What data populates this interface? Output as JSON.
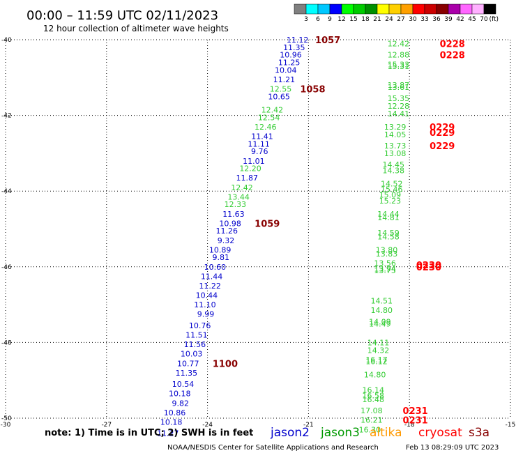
{
  "chart_data": {
    "type": "scatter",
    "title": "00:00 – 11:59 UTC 02/11/2023",
    "subtitle": "12 hour collection of altimeter wave heights",
    "xlim": [
      -30,
      -15
    ],
    "ylim": [
      -50,
      -40
    ],
    "x_ticks": [
      -30,
      -27,
      -24,
      -21,
      -18,
      -15
    ],
    "y_ticks": [
      -40,
      -42,
      -44,
      -46,
      -48,
      -50
    ],
    "x_tick_labels": [
      "-30",
      "-27",
      "-24",
      "-21",
      "-18",
      "-15"
    ],
    "y_tick_labels": [
      "-40",
      "-42",
      "-44",
      "-46",
      "-48",
      "-50"
    ],
    "grid": true,
    "legend": {
      "values": [
        "3",
        "6",
        "9",
        "12",
        "15",
        "18",
        "21",
        "24",
        "27",
        "30",
        "33",
        "36",
        "39",
        "42",
        "45",
        "70"
      ],
      "unit": "(ft)",
      "colors": [
        "#808080",
        "#00ffff",
        "#00c8ff",
        "#0000ff",
        "#00ff00",
        "#00cc00",
        "#009000",
        "#ffff00",
        "#ffd000",
        "#ffa000",
        "#ff0000",
        "#cc0000",
        "#880000",
        "#aa00aa",
        "#ff66ff",
        "#ffb0ff",
        "#000000"
      ]
    },
    "series": [
      {
        "name": "jason2",
        "color": "#0000cc",
        "points": [
          {
            "x": -21.0,
            "y": -40.0,
            "label": "11.12"
          },
          {
            "x": -21.1,
            "y": -40.2,
            "label": "11.35"
          },
          {
            "x": -21.2,
            "y": -40.4,
            "label": "10.96"
          },
          {
            "x": -21.25,
            "y": -40.6,
            "label": "11.25"
          },
          {
            "x": -21.35,
            "y": -40.8,
            "label": "10.04"
          },
          {
            "x": -21.4,
            "y": -41.05,
            "label": "11.21"
          },
          {
            "x": -21.55,
            "y": -41.5,
            "label": "10.65"
          },
          {
            "x": -22.05,
            "y": -42.55,
            "label": "11.41"
          },
          {
            "x": -22.15,
            "y": -42.75,
            "label": "11.11"
          },
          {
            "x": -22.2,
            "y": -42.95,
            "label": "9.76"
          },
          {
            "x": -22.3,
            "y": -43.2,
            "label": "11.01"
          },
          {
            "x": -22.5,
            "y": -43.65,
            "label": "11.87"
          },
          {
            "x": -22.9,
            "y": -44.6,
            "label": "11.63"
          },
          {
            "x": -23.0,
            "y": -44.85,
            "label": "10.98"
          },
          {
            "x": -23.1,
            "y": -45.05,
            "label": "11.26"
          },
          {
            "x": -23.2,
            "y": -45.3,
            "label": "9.32"
          },
          {
            "x": -23.3,
            "y": -45.55,
            "label": "10.89"
          },
          {
            "x": -23.35,
            "y": -45.75,
            "label": "9.81"
          },
          {
            "x": -23.45,
            "y": -46.0,
            "label": "10.60"
          },
          {
            "x": -23.55,
            "y": -46.25,
            "label": "11.44"
          },
          {
            "x": -23.6,
            "y": -46.5,
            "label": "11.22"
          },
          {
            "x": -23.7,
            "y": -46.75,
            "label": "10.44"
          },
          {
            "x": -23.75,
            "y": -47.0,
            "label": "11.10"
          },
          {
            "x": -23.8,
            "y": -47.25,
            "label": "9.99"
          },
          {
            "x": -23.9,
            "y": -47.55,
            "label": "10.76"
          },
          {
            "x": -24.0,
            "y": -47.8,
            "label": "11.51"
          },
          {
            "x": -24.05,
            "y": -48.05,
            "label": "11.56"
          },
          {
            "x": -24.15,
            "y": -48.3,
            "label": "10.03"
          },
          {
            "x": -24.25,
            "y": -48.55,
            "label": "10.77"
          },
          {
            "x": -24.3,
            "y": -48.8,
            "label": "11.35"
          },
          {
            "x": -24.4,
            "y": -49.1,
            "label": "10.54"
          },
          {
            "x": -24.5,
            "y": -49.35,
            "label": "10.18"
          },
          {
            "x": -24.55,
            "y": -49.6,
            "label": "9.82"
          },
          {
            "x": -24.65,
            "y": -49.85,
            "label": "10.86"
          },
          {
            "x": -24.75,
            "y": -50.1,
            "label": "10.18"
          },
          {
            "x": -24.85,
            "y": -50.4,
            "label": "11.27"
          }
        ]
      },
      {
        "name": "jason3",
        "color": "#33cc33",
        "points": [
          {
            "x": -21.5,
            "y": -41.3,
            "label": "12.55"
          },
          {
            "x": -21.75,
            "y": -41.85,
            "label": "12.42"
          },
          {
            "x": -21.85,
            "y": -42.05,
            "label": "12.54"
          },
          {
            "x": -21.95,
            "y": -42.3,
            "label": "12.46"
          },
          {
            "x": -22.4,
            "y": -43.4,
            "label": "12.20"
          },
          {
            "x": -22.65,
            "y": -43.9,
            "label": "12.42"
          },
          {
            "x": -22.75,
            "y": -44.15,
            "label": "13.44"
          },
          {
            "x": -22.85,
            "y": -44.35,
            "label": "12.33"
          },
          {
            "x": -18.0,
            "y": -40.1,
            "label": "12.42"
          },
          {
            "x": -18.0,
            "y": -40.4,
            "label": "12.88"
          },
          {
            "x": -18.0,
            "y": -40.65,
            "label": "15.33"
          },
          {
            "x": -18.0,
            "y": -40.7,
            "label": "15.31"
          },
          {
            "x": -18.0,
            "y": -41.2,
            "label": "13.87"
          },
          {
            "x": -18.0,
            "y": -41.25,
            "label": "13.61"
          },
          {
            "x": -18.0,
            "y": -41.55,
            "label": "15.35"
          },
          {
            "x": -18.0,
            "y": -41.75,
            "label": "12.28"
          },
          {
            "x": -18.0,
            "y": -41.95,
            "label": "14.41"
          },
          {
            "x": -18.1,
            "y": -42.3,
            "label": "13.29"
          },
          {
            "x": -18.1,
            "y": -42.5,
            "label": "14.05"
          },
          {
            "x": -18.1,
            "y": -42.8,
            "label": "13.73"
          },
          {
            "x": -18.1,
            "y": -43.0,
            "label": "13.08"
          },
          {
            "x": -18.15,
            "y": -43.3,
            "label": "14.45"
          },
          {
            "x": -18.15,
            "y": -43.45,
            "label": "14.38"
          },
          {
            "x": -18.2,
            "y": -43.8,
            "label": "14.52"
          },
          {
            "x": -18.2,
            "y": -43.95,
            "label": "15.46"
          },
          {
            "x": -18.25,
            "y": -44.1,
            "label": "15.09"
          },
          {
            "x": -18.25,
            "y": -44.25,
            "label": "15.23"
          },
          {
            "x": -18.3,
            "y": -44.6,
            "label": "14.44"
          },
          {
            "x": -18.3,
            "y": -44.7,
            "label": "14.81"
          },
          {
            "x": -18.3,
            "y": -45.1,
            "label": "14.59"
          },
          {
            "x": -18.3,
            "y": -45.2,
            "label": "14.58"
          },
          {
            "x": -18.35,
            "y": -45.55,
            "label": "13.80"
          },
          {
            "x": -18.35,
            "y": -45.65,
            "label": "13.83"
          },
          {
            "x": -18.4,
            "y": -45.9,
            "label": "13.56"
          },
          {
            "x": -18.4,
            "y": -46.05,
            "label": "13.94"
          },
          {
            "x": -18.4,
            "y": -46.1,
            "label": "13.75"
          },
          {
            "x": -18.5,
            "y": -46.9,
            "label": "14.51"
          },
          {
            "x": -18.5,
            "y": -47.15,
            "label": "14.80"
          },
          {
            "x": -18.55,
            "y": -47.45,
            "label": "14.09"
          },
          {
            "x": -18.55,
            "y": -47.5,
            "label": "14.49"
          },
          {
            "x": -18.6,
            "y": -48.0,
            "label": "14.11"
          },
          {
            "x": -18.6,
            "y": -48.2,
            "label": "14.32"
          },
          {
            "x": -18.65,
            "y": -48.45,
            "label": "16.17"
          },
          {
            "x": -18.65,
            "y": -48.5,
            "label": "16.12"
          },
          {
            "x": -18.7,
            "y": -48.85,
            "label": "14.80"
          },
          {
            "x": -18.75,
            "y": -49.25,
            "label": "16.14"
          },
          {
            "x": -18.75,
            "y": -49.4,
            "label": "16.58"
          },
          {
            "x": -18.75,
            "y": -49.5,
            "label": "16.48"
          },
          {
            "x": -18.8,
            "y": -49.8,
            "label": "17.08"
          },
          {
            "x": -18.8,
            "y": -50.05,
            "label": "16.21"
          },
          {
            "x": -18.85,
            "y": -50.3,
            "label": "16.30"
          }
        ]
      }
    ],
    "annotations": [
      {
        "text": "1057",
        "x": -20.8,
        "y": -40.0,
        "color": "#880000"
      },
      {
        "text": "1058",
        "x": -21.25,
        "y": -41.3,
        "color": "#880000"
      },
      {
        "text": "1059",
        "x": -22.6,
        "y": -44.85,
        "color": "#880000"
      },
      {
        "text": "1100",
        "x": -23.85,
        "y": -48.55,
        "color": "#880000"
      },
      {
        "text": "0228",
        "x": -17.1,
        "y": -40.1,
        "color": "#ff0000"
      },
      {
        "text": "0228",
        "x": -17.1,
        "y": -40.4,
        "color": "#ff0000"
      },
      {
        "text": "0229",
        "x": -17.4,
        "y": -42.3,
        "color": "#ff0000"
      },
      {
        "text": "0229",
        "x": -17.4,
        "y": -42.45,
        "color": "#ff0000"
      },
      {
        "text": "0229",
        "x": -17.4,
        "y": -42.8,
        "color": "#ff0000"
      },
      {
        "text": "0230",
        "x": -17.8,
        "y": -45.95,
        "color": "#ff0000"
      },
      {
        "text": "0230",
        "x": -17.8,
        "y": -46.0,
        "color": "#ff0000"
      },
      {
        "text": "0231",
        "x": -18.2,
        "y": -49.8,
        "color": "#ff0000"
      },
      {
        "text": "0231",
        "x": -18.2,
        "y": -50.05,
        "color": "#ff0000"
      }
    ],
    "legend_entries": [
      {
        "name": "jason2",
        "color": "#0000cc"
      },
      {
        "name": "jason3",
        "color": "#009900"
      },
      {
        "name": "altika",
        "color": "#ff9900"
      },
      {
        "name": "cryosat",
        "color": "#ff0000"
      },
      {
        "name": "s3a",
        "color": "#880000"
      }
    ],
    "note": "note: 1) Time is in UTC; 2) SWH is in feet",
    "credit": "NOAA/NESDIS Center for Satellite Applications and Research",
    "timestamp": "Feb 13 08:29:09 UTC 2023"
  }
}
